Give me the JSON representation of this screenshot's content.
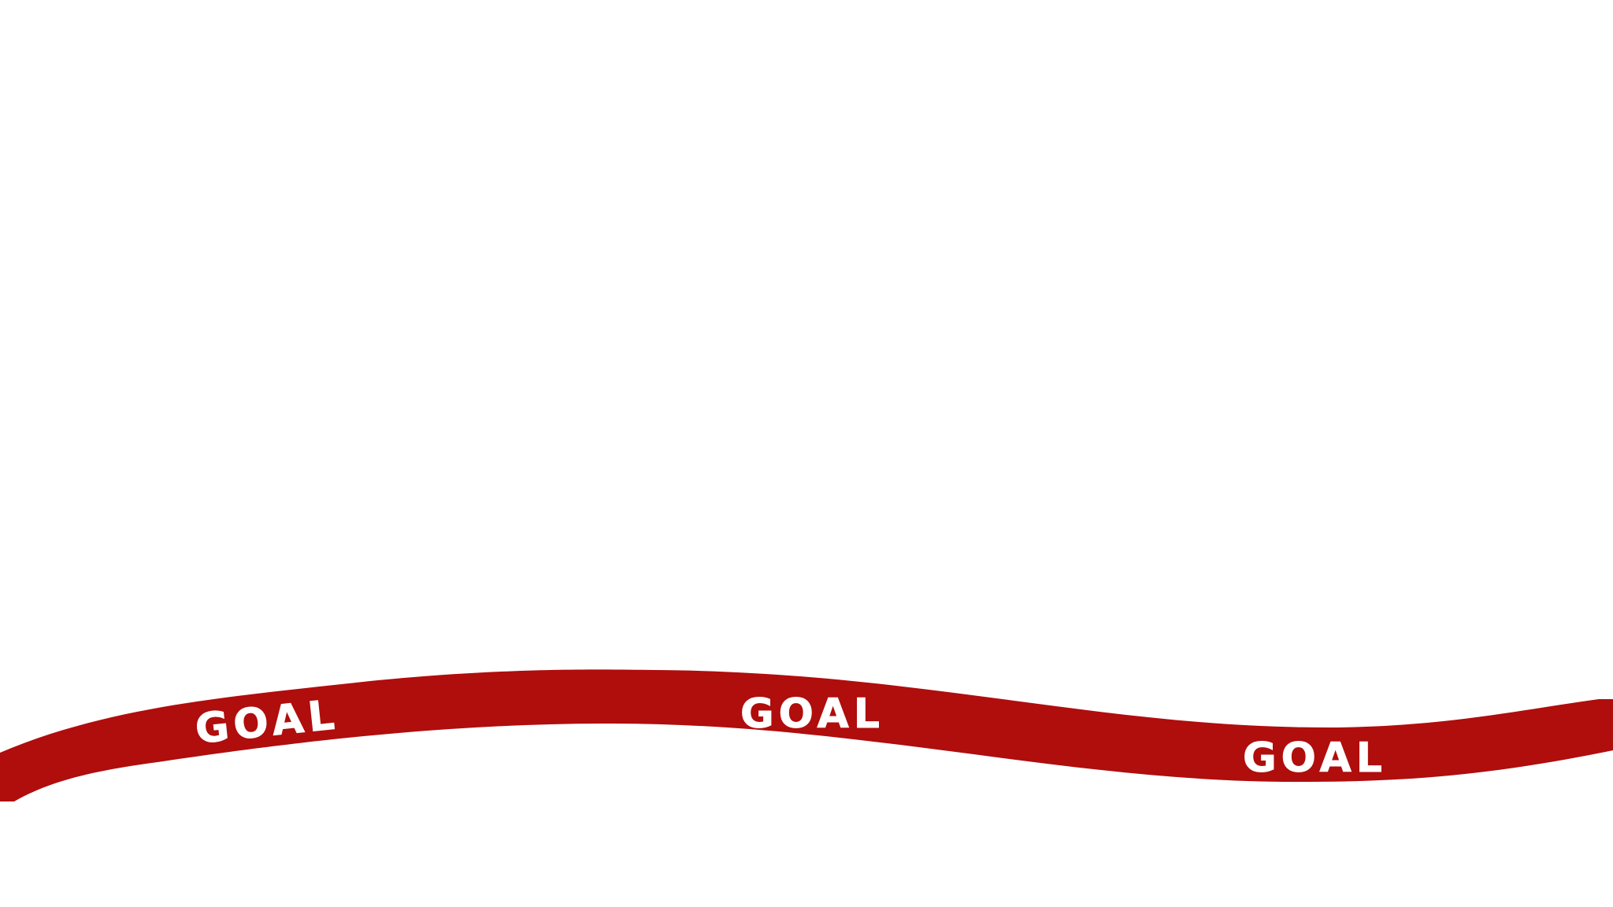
{
  "banner": {
    "color": "#b00d0d",
    "text_color": "#ffffff",
    "labels": [
      "GOAL",
      "GOAL",
      "GOAL"
    ]
  },
  "background": "#ffffff"
}
